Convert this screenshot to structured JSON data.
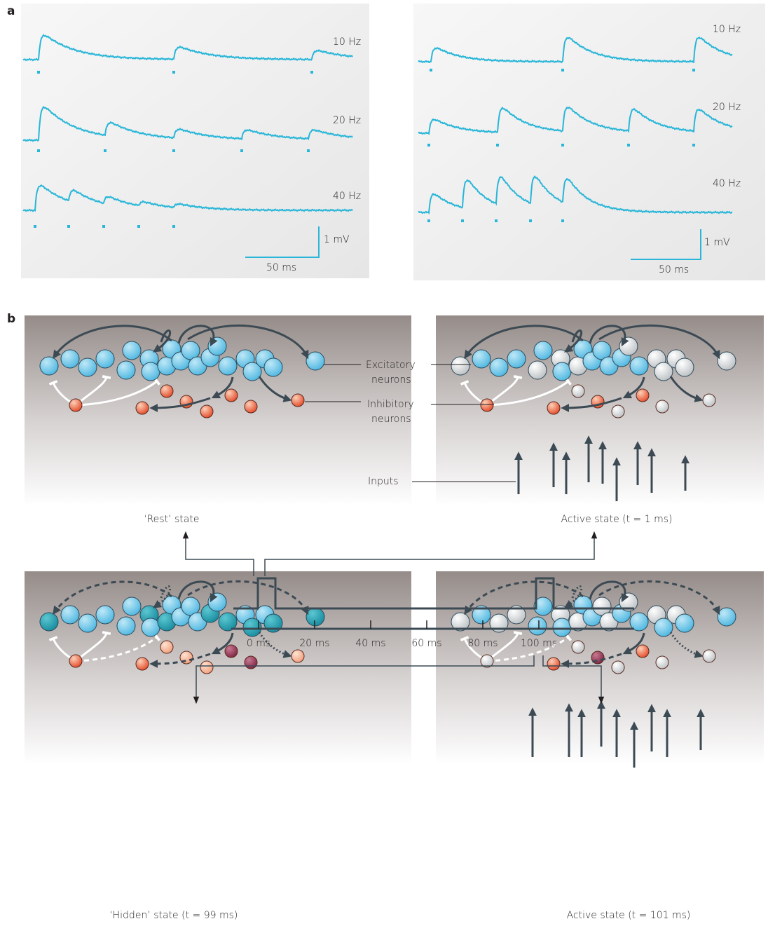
{
  "panel_a": {
    "label": "a",
    "left": {
      "traces": [
        "10 Hz",
        "20 Hz",
        "40 Hz"
      ],
      "scale_y": "1 mV",
      "scale_x": "50 ms"
    },
    "right": {
      "traces": [
        "10 Hz",
        "20 Hz",
        "40 Hz"
      ],
      "scale_y": "1 mV",
      "scale_x": "50 ms"
    }
  },
  "panel_b": {
    "label": "b",
    "excitatory_label": [
      "Excitatory",
      "neurons"
    ],
    "inhibitory_label": [
      "Inhibitory",
      "neurons"
    ],
    "inputs_label": "Inputs",
    "states": [
      "‘Rest’ state",
      "Active state (t = 1 ms)",
      "‘Hidden’ state (t = 99 ms)",
      "Active state (t = 101 ms)"
    ],
    "timeline_ticks": [
      "0 ms",
      "20 ms",
      "40 ms",
      "60 ms",
      "80 ms",
      "100 ms"
    ]
  }
}
